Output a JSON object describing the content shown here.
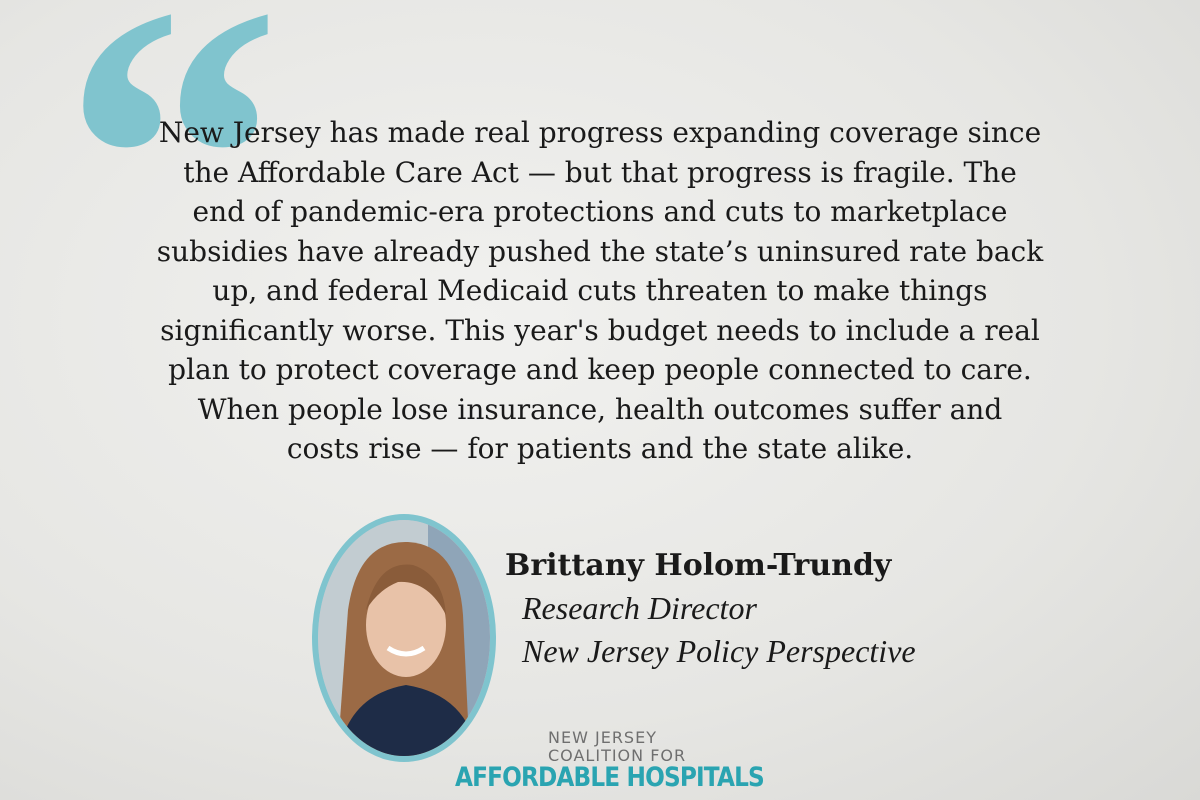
{
  "quote": {
    "lines": [
      "New Jersey has made real progress expanding coverage since",
      "the Affordable Care Act — but that progress is fragile. The",
      "end of pandemic-era protections and cuts to marketplace",
      "subsidies have already pushed the state’s uninsured rate back",
      "up, and federal Medicaid cuts threaten to make things",
      "significantly worse. This year's budget needs to include a real",
      "plan to protect coverage and keep people connected to care.",
      "When people lose insurance, health outcomes suffer and",
      "costs rise — for patients and the state alike."
    ]
  },
  "speaker": {
    "name": "Brittany Holom-Trundy",
    "title": "Research Director",
    "organization": "New Jersey Policy Perspective"
  },
  "logo": {
    "line1": "NEW JERSEY",
    "line2": "COALITION FOR",
    "line3": "AFFORDABLE HOSPITALS"
  }
}
